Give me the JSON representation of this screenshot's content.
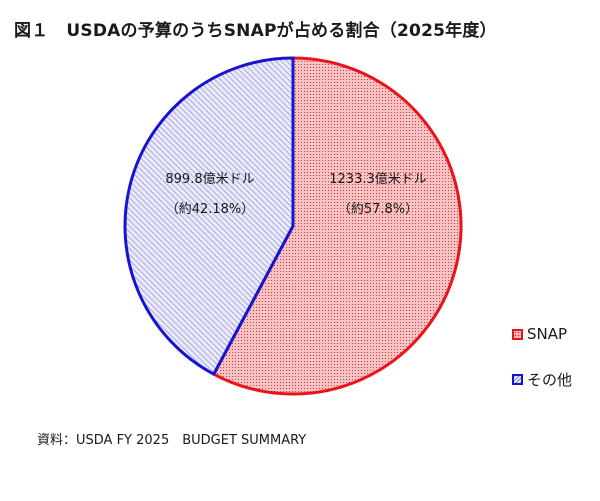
{
  "figure": {
    "number": "図１",
    "title": "USDAの予算のうちSNAPが占める割合（2025年度）"
  },
  "source": "資料：USDA FY 2025　BUDGET SUMMARY",
  "legend": {
    "placement": "right",
    "items": [
      {
        "label": "SNAP",
        "swatch": "snap"
      },
      {
        "label": "その他",
        "swatch": "other"
      }
    ]
  },
  "chart_data": {
    "type": "pie",
    "start_angle_deg": 0,
    "direction": "clockwise",
    "slices": [
      {
        "name": "SNAP",
        "value": 1233.3,
        "value_label": "1233.3億米ドル",
        "percent_label": "（約57.8%）",
        "color": "#e8141c",
        "fill_color": "#f6c4c4",
        "pattern": "dots"
      },
      {
        "name": "その他",
        "value": 899.8,
        "value_label": "899.8億米ドル",
        "percent_label": "（約42.18%）",
        "color": "#1414d2",
        "fill_color": "#eaeaf8",
        "pattern": "diagonal-hatch"
      }
    ]
  }
}
